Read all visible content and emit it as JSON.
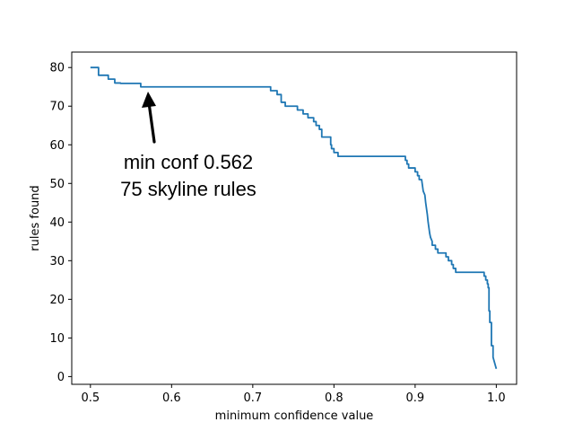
{
  "chart_data": {
    "type": "line",
    "title": "",
    "xlabel": "minimum confidence value",
    "ylabel": "rules found",
    "xlim": [
      0.477,
      1.025
    ],
    "ylim": [
      -2,
      84
    ],
    "xticks": [
      0.5,
      0.6,
      0.7,
      0.8,
      0.9,
      1.0
    ],
    "xtick_labels": [
      "0.5",
      "0.6",
      "0.7",
      "0.8",
      "0.9",
      "1.0"
    ],
    "yticks": [
      0,
      10,
      20,
      30,
      40,
      50,
      60,
      70,
      80
    ],
    "ytick_labels": [
      "0",
      "10",
      "20",
      "30",
      "40",
      "50",
      "60",
      "70",
      "80"
    ],
    "grid": false,
    "line_color": "#1f77b4",
    "series": [
      {
        "x": [
          0.5,
          0.51,
          0.51,
          0.522,
          0.522,
          0.53,
          0.53,
          0.537,
          0.537,
          0.562,
          0.562,
          0.722,
          0.722,
          0.73,
          0.73,
          0.735,
          0.735,
          0.74,
          0.74,
          0.755,
          0.755,
          0.762,
          0.762,
          0.768,
          0.768,
          0.775,
          0.775,
          0.778,
          0.778,
          0.782,
          0.782,
          0.785,
          0.785,
          0.796,
          0.796,
          0.797,
          0.797,
          0.8,
          0.8,
          0.805,
          0.805,
          0.822,
          0.822,
          0.888,
          0.888,
          0.89,
          0.89,
          0.892,
          0.892,
          0.9,
          0.9,
          0.903,
          0.903,
          0.905,
          0.905,
          0.908,
          0.91,
          0.912,
          0.913,
          0.915,
          0.916,
          0.918,
          0.919,
          0.921,
          0.921,
          0.925,
          0.925,
          0.928,
          0.928,
          0.938,
          0.938,
          0.941,
          0.941,
          0.945,
          0.945,
          0.947,
          0.947,
          0.95,
          0.95,
          0.985,
          0.985,
          0.987,
          0.987,
          0.989,
          0.989,
          0.99,
          0.99,
          0.991,
          0.991,
          0.992,
          0.992,
          0.994,
          0.994,
          0.996,
          0.996,
          1.0
        ],
        "y": [
          80,
          80,
          78,
          78,
          77,
          77,
          76,
          76,
          75.9,
          75.9,
          75,
          75,
          74,
          74,
          73,
          73,
          71,
          71,
          70,
          70,
          69,
          69,
          68,
          68,
          67,
          67,
          66,
          66,
          65,
          65,
          64,
          64,
          62,
          62,
          60,
          60,
          59,
          59,
          58,
          58,
          57,
          57,
          57,
          57,
          56,
          56,
          55,
          55,
          54,
          54,
          53,
          53,
          52,
          52,
          51,
          51,
          48,
          47,
          45,
          42,
          40,
          37,
          36,
          35,
          34,
          34,
          33,
          33,
          32,
          32,
          31,
          31,
          30,
          30,
          29,
          29,
          28,
          28,
          27,
          27,
          26,
          26,
          25,
          25,
          24,
          24,
          23,
          23,
          17,
          17,
          14,
          14,
          8,
          8,
          5,
          2
        ]
      }
    ],
    "annotation": {
      "lines": [
        "min conf 0.562",
        "75 skyline rules"
      ],
      "point": [
        0.562,
        75
      ]
    }
  }
}
